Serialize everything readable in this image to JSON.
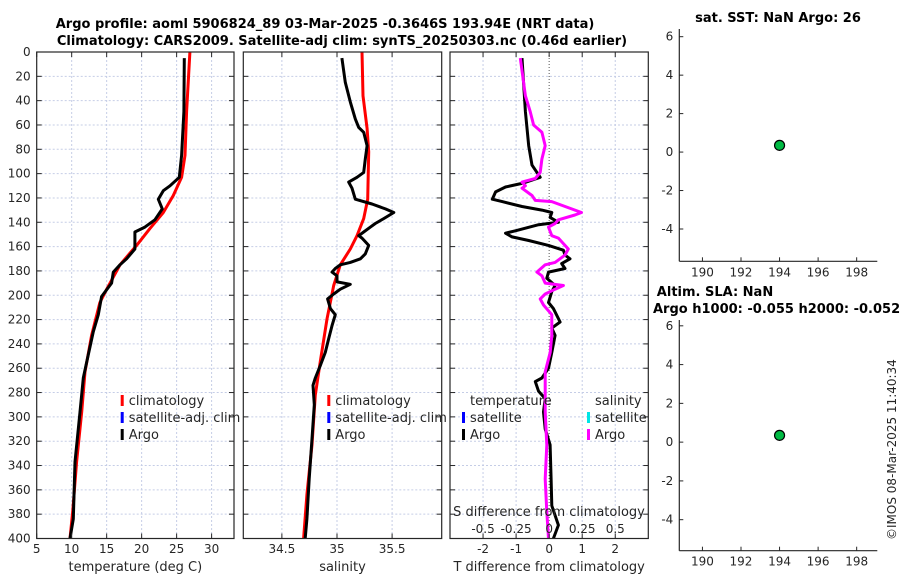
{
  "title": {
    "line1": "Argo profile: aoml 5906824_89 03-Mar-2025 -0.3646S 193.94E (NRT data)",
    "line2": "Climatology: CARS2009. Satellite-adj clim: synTS_20250303.nc (0.46d earlier)"
  },
  "copyright": "©IMOS 08-Mar-2025 11:40:34",
  "colors": {
    "climatology": "#ff0000",
    "satellite_clim": "#0000ff",
    "argo": "#000000",
    "sal_satellite": "#00e5e5",
    "sal_argo": "#ff00ff",
    "marker": "#00bb44",
    "grid": "#c5cde6"
  },
  "chart_data": [
    {
      "type": "line",
      "xlabel": "temperature (deg C)",
      "ylabel": "",
      "xlim": [
        5,
        33.2
      ],
      "ylim": [
        400,
        0
      ],
      "xticks": [
        5,
        10,
        15,
        20,
        25,
        30
      ],
      "xtick_labels": [
        "5",
        "10",
        "15",
        "20",
        "25",
        "30"
      ],
      "yticks": [
        0,
        20,
        40,
        60,
        80,
        100,
        120,
        140,
        160,
        180,
        200,
        220,
        240,
        260,
        280,
        300,
        320,
        340,
        360,
        380,
        400
      ],
      "ytick_labels": [
        "0",
        "20",
        "40",
        "60",
        "80",
        "100",
        "120",
        "140",
        "160",
        "180",
        "200",
        "220",
        "240",
        "260",
        "280",
        "300",
        "320",
        "340",
        "360",
        "380",
        "400"
      ],
      "grid": true,
      "legend": {
        "placement": "bottom-right",
        "entries": [
          "climatology",
          "satellite-adj. clim",
          "Argo"
        ]
      },
      "series": [
        {
          "name": "climatology",
          "color": "#ff0000",
          "x": [
            26.9,
            26.43,
            26.19,
            25.71,
            24.52,
            23.09,
            21.19,
            19.28,
            16.9,
            15,
            14.04,
            12.85,
            11.9,
            11.43,
            10.71,
            10.14,
            9.76
          ],
          "y": [
            0,
            49,
            85,
            103,
            118,
            132,
            145,
            159,
            175,
            195,
            206,
            233,
            263,
            296,
            337,
            378,
            400
          ]
        },
        {
          "name": "Argo",
          "color": "#000000",
          "x": [
            26.09,
            26.04,
            25.71,
            25.38,
            24.05,
            23.09,
            22.38,
            22.95,
            21.9,
            20.47,
            19.04,
            19.04,
            17.85,
            16.9,
            15.95,
            15.71,
            14.28,
            13.8,
            13.09,
            12.14,
            11.66,
            11.19,
            10.47,
            10.23,
            9.76
          ],
          "y": [
            5,
            49,
            85,
            103,
            110,
            114,
            121,
            129,
            138,
            144,
            148,
            162,
            170,
            175,
            181,
            190,
            201,
            216,
            230,
            255,
            268,
            296,
            337,
            384,
            400
          ]
        }
      ]
    },
    {
      "type": "line",
      "xlabel": "salinity",
      "xlim": [
        34.15,
        35.95
      ],
      "ylim": [
        400,
        0
      ],
      "xticks": [
        34.5,
        35,
        35.5
      ],
      "xtick_labels": [
        "34.5",
        "35",
        "35.5"
      ],
      "grid": true,
      "legend": {
        "placement": "bottom-right",
        "entries": [
          "climatology",
          "satellite-adj. clim",
          "Argo"
        ]
      },
      "series": [
        {
          "name": "climatology",
          "color": "#ff0000",
          "x": [
            35.227,
            35.236,
            35.273,
            35.288,
            35.279,
            35.242,
            35.182,
            35.121,
            35.03,
            34.97,
            34.91,
            34.848,
            34.803,
            34.773,
            34.727,
            34.697
          ],
          "y": [
            0,
            36,
            63,
            82,
            121,
            137,
            151,
            162,
            175,
            192,
            219,
            255,
            282,
            323,
            364,
            400
          ]
        },
        {
          "name": "Argo",
          "color": "#000000",
          "x": [
            35.045,
            35.075,
            35.121,
            35.166,
            35.197,
            35.242,
            35.273,
            35.257,
            35.242,
            35.182,
            35.106,
            35.136,
            35.166,
            35.318,
            35.439,
            35.515,
            35.424,
            35.348,
            35.303,
            35.242,
            35.197,
            35.227,
            35.288,
            35.257,
            35.212,
            35.121,
            35.03,
            34.985,
            34.955,
            35.0,
            35.0,
            35.121,
            35.03,
            34.97,
            34.915,
            34.94,
            34.985,
            34.955,
            34.924,
            34.894,
            34.848,
            34.803,
            34.782,
            34.794,
            34.773,
            34.748,
            34.727,
            34.712
          ],
          "y": [
            5,
            25,
            41,
            55,
            62,
            66,
            77,
            88,
            99,
            103,
            107,
            112,
            121,
            125,
            129,
            132,
            137,
            141,
            144,
            148,
            151,
            153,
            159,
            166,
            170,
            173,
            175,
            178,
            181,
            184,
            189,
            191,
            195,
            199,
            203,
            211,
            216,
            225,
            236,
            247,
            258,
            268,
            274,
            290,
            318,
            351,
            384,
            400
          ]
        }
      ]
    },
    {
      "type": "line",
      "xlabel": "T difference from climatology",
      "xlabel_top": "S difference from climatology",
      "xlim": [
        -3,
        3
      ],
      "xlim_top": [
        -0.75,
        0.75
      ],
      "ylim": [
        400,
        0
      ],
      "xticks": [
        -2,
        -1,
        0,
        1,
        2
      ],
      "xtick_labels": [
        "-2",
        "-1",
        "0",
        "1",
        "2"
      ],
      "xticks_top": [
        -0.5,
        -0.25,
        0,
        0.25,
        0.5
      ],
      "xtick_labels_top": [
        "-0.5",
        "-0.25",
        "0",
        "0.25",
        "0.5"
      ],
      "grid": true,
      "legend": {
        "placement": "bottom",
        "temperature_title": "temperature",
        "salinity_title": "salinity",
        "entries": [
          "satellite",
          "Argo",
          "satellite",
          "Argo"
        ]
      },
      "series": [
        {
          "name": "temperature Argo",
          "color": "#000000",
          "axis": "T",
          "x": [
            -0.82,
            -0.72,
            -0.62,
            -0.52,
            -0.27,
            -0.82,
            -1.32,
            -1.62,
            -1.72,
            -1.42,
            -0.82,
            -0.22,
            0.08,
            0.03,
            0.28,
            -0.32,
            -1.02,
            -1.32,
            -1.12,
            -0.62,
            -0.02,
            0.43,
            0.48,
            0.63,
            0.38,
            0.48,
            -0.02,
            -0.07,
            0.18,
            0.08,
            -0.02,
            0.13,
            0.33,
            0.08,
            0.18,
            0.08,
            -0.02,
            -0.22,
            -0.42,
            -0.32,
            -0.12,
            -0.17,
            -0.12,
            0.03,
            0.06,
            0.08,
            0.28,
            0.13
          ],
          "y": [
            5,
            49,
            77,
            93,
            103,
            108,
            111,
            115,
            121,
            123,
            127,
            130,
            132,
            136,
            140,
            142,
            147,
            149,
            152,
            155,
            159,
            163,
            167,
            170,
            174,
            178,
            181,
            186,
            192,
            197,
            206,
            211,
            222,
            227,
            233,
            247,
            260,
            268,
            271,
            279,
            285,
            296,
            310,
            323,
            351,
            373,
            389,
            400
          ]
        },
        {
          "name": "salinity Argo",
          "color": "#ff00ff",
          "axis": "S",
          "x": [
            -0.218,
            -0.18,
            -0.143,
            -0.118,
            -0.055,
            -0.03,
            -0.055,
            -0.068,
            -0.105,
            -0.205,
            -0.18,
            -0.205,
            -0.13,
            -0.105,
            0.02,
            0.17,
            0.245,
            0.195,
            0.07,
            0.045,
            -0.005,
            0.02,
            0.07,
            0.145,
            0.12,
            0.045,
            -0.03,
            -0.093,
            -0.055,
            -0.03,
            0.108,
            0.045,
            -0.03,
            -0.068,
            -0.043,
            0.02,
            0.02,
            0.008,
            -0.03,
            -0.03,
            -0.018,
            -0.03,
            -0.018,
            -0.005
          ],
          "y": [
            5,
            36,
            49,
            60,
            66,
            77,
            88,
            99,
            104,
            107,
            110,
            112,
            118,
            122,
            123,
            129,
            132,
            134,
            138,
            141,
            144,
            151,
            153,
            162,
            167,
            173,
            175,
            181,
            184,
            190,
            192,
            195,
            199,
            203,
            208,
            216,
            233,
            247,
            263,
            296,
            323,
            351,
            378,
            400
          ]
        }
      ]
    },
    {
      "type": "scatter",
      "title": "sat. SST: NaN Argo: 26",
      "xlim": [
        188.8,
        199.07
      ],
      "ylim": [
        -5.68,
        6.4
      ],
      "xticks": [
        190,
        192,
        194,
        196,
        198
      ],
      "xtick_labels": [
        "190",
        "192",
        "194",
        "196",
        "198"
      ],
      "yticks": [
        6,
        4,
        2,
        0,
        -2,
        -4
      ],
      "ytick_labels": [
        "6",
        "4",
        "2",
        "0",
        "-2",
        "-4"
      ],
      "points": [
        {
          "x": 194,
          "y": 0.35
        }
      ]
    },
    {
      "type": "scatter",
      "title": "Altim. SLA: NaN",
      "subtitle": "Argo h1000: -0.055 h2000: -0.052",
      "xlim": [
        188.8,
        199.07
      ],
      "ylim": [
        -5.6,
        6.3
      ],
      "xticks": [
        190,
        192,
        194,
        196,
        198
      ],
      "xtick_labels": [
        "190",
        "192",
        "194",
        "196",
        "198"
      ],
      "yticks": [
        6,
        4,
        2,
        0,
        -2,
        -4
      ],
      "ytick_labels": [
        "6",
        "4",
        "2",
        "0",
        "-2",
        "-4"
      ],
      "points": [
        {
          "x": 194,
          "y": 0.35
        }
      ]
    }
  ]
}
